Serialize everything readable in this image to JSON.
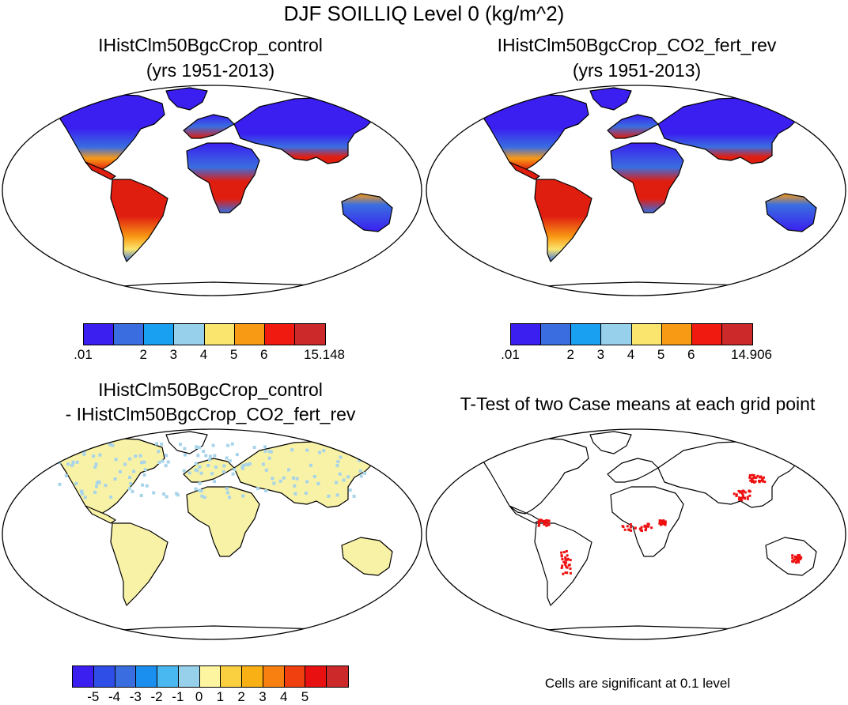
{
  "title": "DJF SOILLIQ Level 0 (kg/m^2)",
  "panels": [
    {
      "id": "control",
      "title_line1": "IHistClm50BgcCrop_control",
      "title_line2": "(yrs 1951-2013)"
    },
    {
      "id": "co2",
      "title_line1": "IHistClm50BgcCrop_CO2_fert_rev",
      "title_line2": "(yrs 1951-2013)"
    },
    {
      "id": "diff",
      "title_line1": "IHistClm50BgcCrop_control",
      "title_line2": "- IHistClm50BgcCrop_CO2_fert_rev"
    },
    {
      "id": "ttest",
      "title_line1": "T-Test of two Case means at each grid point",
      "title_line2": ""
    }
  ],
  "colorbars": {
    "control": {
      "colors": [
        "#3a1ff0",
        "#3a6ee0",
        "#1aa0f0",
        "#96d0ea",
        "#fae66e",
        "#f99a14",
        "#f01a10",
        "#cc2a2a"
      ],
      "labels": [
        ".01",
        "2",
        "3",
        "4",
        "5",
        "6",
        "15.148"
      ],
      "label_boundaries": [
        0,
        2,
        3,
        4,
        5,
        6,
        8
      ]
    },
    "co2": {
      "colors": [
        "#3a1ff0",
        "#3a6ee0",
        "#1aa0f0",
        "#96d0ea",
        "#fae66e",
        "#f99a14",
        "#f01a10",
        "#cc2a2a"
      ],
      "labels": [
        ".01",
        "2",
        "3",
        "4",
        "5",
        "6",
        "14.906"
      ],
      "label_boundaries": [
        0,
        2,
        3,
        4,
        5,
        6,
        8
      ]
    },
    "diff": {
      "colors": [
        "#3a1ff0",
        "#2f4ee8",
        "#3a6ee0",
        "#1a8ff0",
        "#4ab8f0",
        "#96d0ea",
        "#fdf5a0",
        "#fad040",
        "#f9b014",
        "#f78010",
        "#f04010",
        "#e81010",
        "#cc2a2a"
      ],
      "labels": [
        "-5",
        "-4",
        "-3",
        "-2",
        "-1",
        "0",
        "1",
        "2",
        "3",
        "4",
        "5"
      ],
      "label_boundaries": [
        1,
        2,
        3,
        4,
        5,
        6,
        7,
        8,
        9,
        10,
        11
      ]
    }
  },
  "ttest_note": "Cells are significant at 0.1 level",
  "colors": {
    "land_outline": "#000000",
    "wet": "#e01e10",
    "moist": "#f99a14",
    "mid": "#fae66e",
    "dry": "#3a6ee0",
    "very_dry": "#3a1ff0",
    "diff_fill": "#f8f2a6",
    "diff_cool": "#a8d4ea",
    "significant": "#ee1010"
  }
}
